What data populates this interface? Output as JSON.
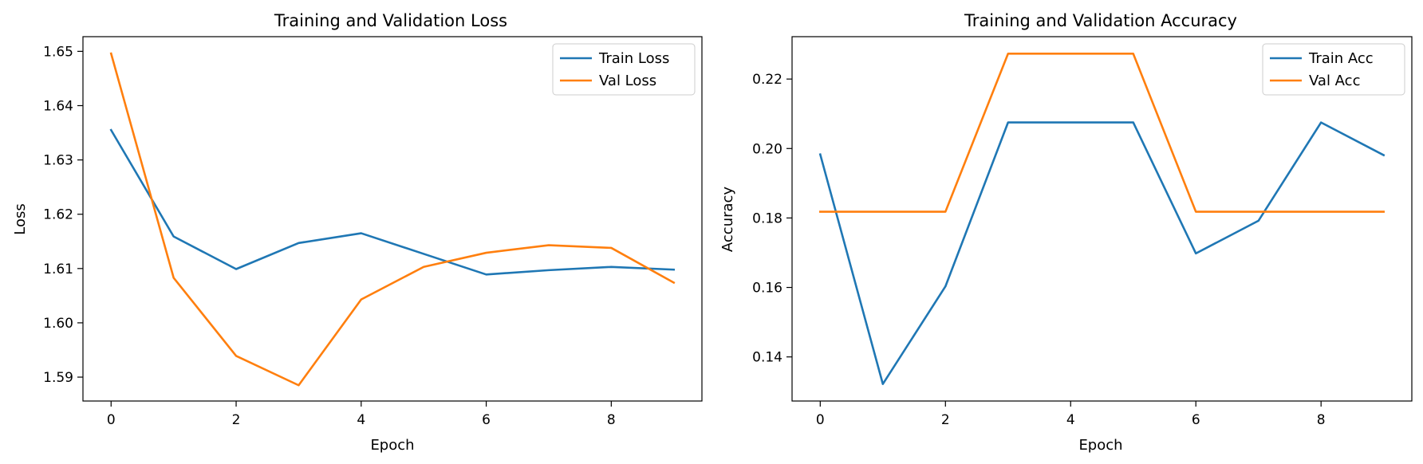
{
  "chart_data": [
    {
      "type": "line",
      "title": "Training and Validation Loss",
      "xlabel": "Epoch",
      "ylabel": "Loss",
      "x": [
        0,
        1,
        2,
        3,
        4,
        5,
        6,
        7,
        8,
        9
      ],
      "xlim": [
        -0.45,
        9.45
      ],
      "ylim": [
        1.5856,
        1.6527
      ],
      "xticks": [
        0,
        2,
        4,
        6,
        8
      ],
      "yticks": [
        1.59,
        1.6,
        1.61,
        1.62,
        1.63,
        1.64,
        1.65
      ],
      "ytick_labels": [
        "1.59",
        "1.60",
        "1.61",
        "1.62",
        "1.63",
        "1.64",
        "1.65"
      ],
      "grid": false,
      "legend_position": "top-right",
      "series": [
        {
          "name": "Train Loss",
          "color": "#1f77b4",
          "values": [
            1.6355,
            1.6159,
            1.6099,
            1.6147,
            1.6165,
            1.6127,
            1.6089,
            1.6097,
            1.6103,
            1.6098
          ]
        },
        {
          "name": "Val Loss",
          "color": "#ff7f0e",
          "values": [
            1.6496,
            1.6083,
            1.5939,
            1.5885,
            1.6043,
            1.6103,
            1.6129,
            1.6143,
            1.6138,
            1.6074
          ]
        }
      ]
    },
    {
      "type": "line",
      "title": "Training and Validation Accuracy",
      "xlabel": "Epoch",
      "ylabel": "Accuracy",
      "x": [
        0,
        1,
        2,
        3,
        4,
        5,
        6,
        7,
        8,
        9
      ],
      "xlim": [
        -0.45,
        9.45
      ],
      "ylim": [
        0.1273,
        0.2322
      ],
      "xticks": [
        0,
        2,
        4,
        6,
        8
      ],
      "yticks": [
        0.14,
        0.16,
        0.18,
        0.2,
        0.22
      ],
      "ytick_labels": [
        "0.14",
        "0.16",
        "0.18",
        "0.20",
        "0.22"
      ],
      "grid": false,
      "legend_position": "top-right",
      "series": [
        {
          "name": "Train Acc",
          "color": "#1f77b4",
          "values": [
            0.1983,
            0.1322,
            0.1603,
            0.2075,
            0.2075,
            0.2075,
            0.1698,
            0.1792,
            0.2075,
            0.1981
          ]
        },
        {
          "name": "Val Acc",
          "color": "#ff7f0e",
          "values": [
            0.1818,
            0.1818,
            0.1818,
            0.2273,
            0.2273,
            0.2273,
            0.1818,
            0.1818,
            0.1818,
            0.1818
          ]
        }
      ]
    }
  ]
}
